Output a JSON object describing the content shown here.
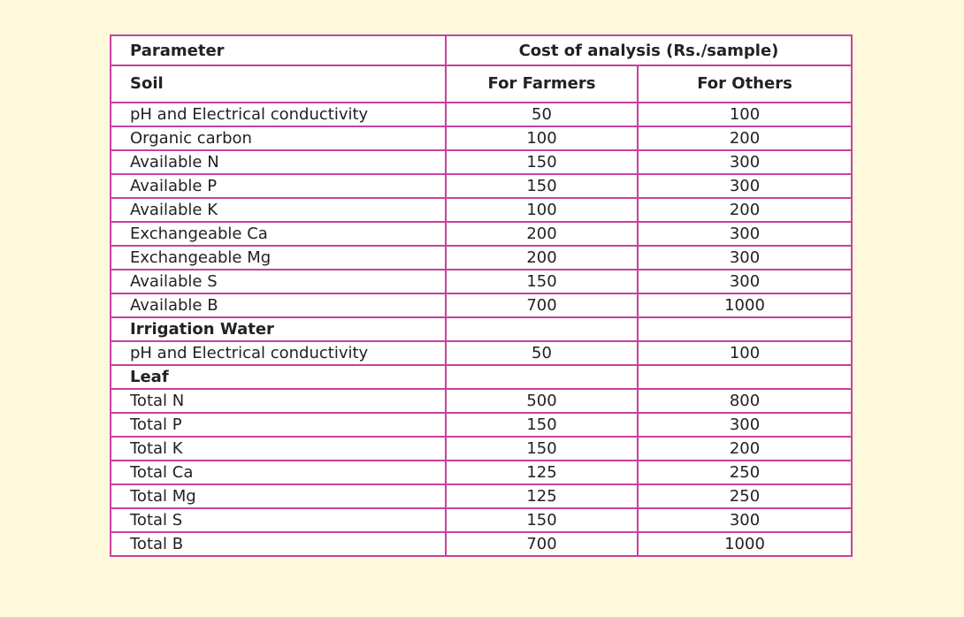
{
  "table": {
    "header": {
      "parameter": "Parameter",
      "cost": "Cost of analysis (Rs./sample)"
    },
    "subheader": {
      "section": "Soil",
      "farmers": "For Farmers",
      "others": "For Others"
    },
    "soil_rows": [
      {
        "param": "pH and Electrical conductivity",
        "farmers": "50",
        "others": "100"
      },
      {
        "param": "Organic carbon",
        "farmers": "100",
        "others": "200"
      },
      {
        "param": "Available N",
        "farmers": "150",
        "others": "300"
      },
      {
        "param": "Available P",
        "farmers": "150",
        "others": "300"
      },
      {
        "param": "Available K",
        "farmers": "100",
        "others": "200"
      },
      {
        "param": "Exchangeable Ca",
        "farmers": "200",
        "others": "300"
      },
      {
        "param": "Exchangeable Mg",
        "farmers": "200",
        "others": "300"
      },
      {
        "param": "Available S",
        "farmers": "150",
        "others": "300"
      },
      {
        "param": "Available B",
        "farmers": "700",
        "others": "1000"
      }
    ],
    "irrigation_section": "Irrigation Water",
    "irrigation_rows": [
      {
        "param": "pH and Electrical conductivity",
        "farmers": "50",
        "others": "100"
      }
    ],
    "leaf_section": "Leaf",
    "leaf_rows": [
      {
        "param": "Total N",
        "farmers": "500",
        "others": "800"
      },
      {
        "param": "Total P",
        "farmers": "150",
        "others": "300"
      },
      {
        "param": "Total K",
        "farmers": "150",
        "others": "200"
      },
      {
        "param": "Total Ca",
        "farmers": "125",
        "others": "250"
      },
      {
        "param": "Total Mg",
        "farmers": "125",
        "others": "250"
      },
      {
        "param": "Total S",
        "farmers": "150",
        "others": "300"
      },
      {
        "param": "Total B",
        "farmers": "700",
        "others": "1000"
      }
    ]
  }
}
